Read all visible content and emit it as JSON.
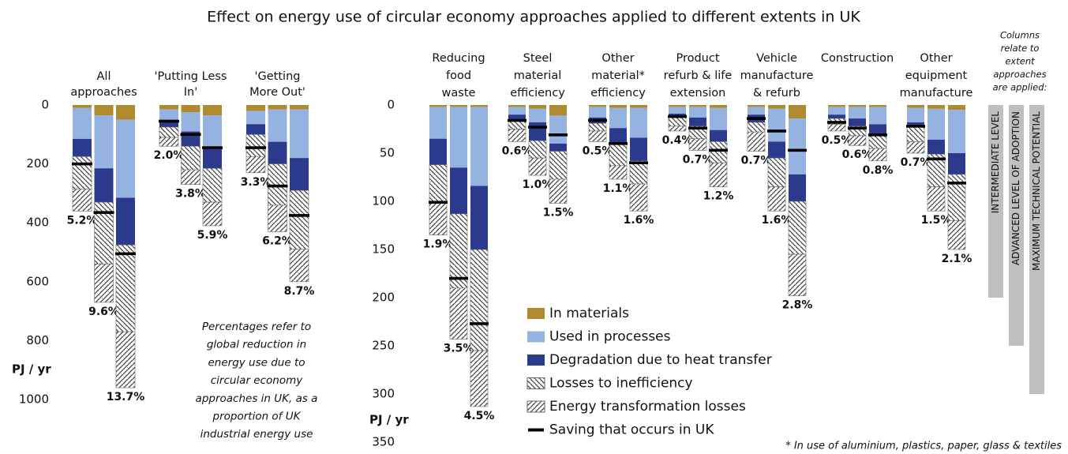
{
  "title": "Effect on energy use of circular economy approaches applied to different extents in UK",
  "chart_data": [
    {
      "type": "stacked_bar",
      "inverted": true,
      "groups": [
        [
          "All",
          "approaches"
        ],
        [
          "'Putting Less",
          "In'"
        ],
        [
          "'Getting",
          "More Out'"
        ]
      ],
      "ylabel": "PJ / yr",
      "ylim": [
        0,
        1000
      ],
      "yticks": [
        0,
        200,
        400,
        600,
        800,
        1000
      ],
      "series": [
        {
          "color": "#b08a2e",
          "values": [
            10,
            35,
            50,
            15,
            25,
            35,
            20,
            15,
            15
          ]
        },
        {
          "color": "#95b3e0",
          "values": [
            105,
            180,
            265,
            35,
            65,
            115,
            45,
            110,
            165
          ]
        },
        {
          "color": "#2b3a8c",
          "values": [
            60,
            115,
            160,
            25,
            50,
            65,
            35,
            75,
            110
          ]
        },
        {
          "color": "#444444",
          "pattern": "backslash",
          "values": [
            110,
            210,
            295,
            35,
            80,
            115,
            75,
            140,
            200
          ]
        },
        {
          "color": "#444444",
          "pattern": "slash",
          "values": [
            75,
            130,
            190,
            30,
            50,
            80,
            55,
            90,
            110
          ]
        }
      ],
      "savings": {
        "color": "#000000",
        "values": [
          200,
          365,
          505,
          55,
          100,
          145,
          145,
          275,
          375
        ]
      },
      "reductions": {
        "values": [
          5.2,
          9.6,
          13.7,
          2.0,
          3.8,
          5.9,
          3.3,
          6.2,
          8.7
        ],
        "value_labels": [
          "5.2%",
          "9.6%",
          "13.7%",
          "2.0%",
          "3.8%",
          "5.9%",
          "3.3%",
          "6.2%",
          "8.7%"
        ]
      },
      "note": [
        "Percentages refer to",
        "global reduction in",
        "energy use due to",
        "circular economy",
        "approaches in UK, as a",
        "proportion of UK",
        "industrial energy use"
      ]
    },
    {
      "type": "stacked_bar",
      "inverted": true,
      "groups": [
        [
          "Reducing",
          "food",
          "waste"
        ],
        [
          "Steel",
          "material",
          "efficiency"
        ],
        [
          "Other",
          "material*",
          "efficiency"
        ],
        [
          "Product",
          "refurb & life",
          "extension"
        ],
        [
          "Vehicle",
          "manufacture",
          "& refurb"
        ],
        [
          "Construction"
        ],
        [
          "Other",
          "equipment",
          "manufacture"
        ]
      ],
      "ylabel": "PJ / yr",
      "ylim": [
        0,
        350
      ],
      "yticks": [
        0,
        50,
        100,
        150,
        200,
        250,
        300,
        350
      ],
      "series": [
        {
          "name": "In materials",
          "color": "#b08a2e",
          "values": [
            2,
            2,
            2,
            2,
            4,
            11,
            2,
            3,
            3,
            2,
            2,
            3,
            2,
            4,
            14,
            2,
            2,
            2,
            3,
            4,
            5
          ]
        },
        {
          "name": "Used in processes",
          "color": "#95b3e0",
          "values": [
            33,
            63,
            82,
            8,
            14,
            29,
            11,
            21,
            31,
            7,
            11,
            23,
            8,
            34,
            58,
            8,
            12,
            18,
            15,
            32,
            45
          ]
        },
        {
          "name": "Degradation due to heat transfer",
          "color": "#2b3a8c",
          "values": [
            27,
            48,
            66,
            5,
            19,
            8,
            6,
            16,
            24,
            4,
            9,
            12,
            8,
            17,
            28,
            4,
            8,
            10,
            5,
            15,
            22
          ]
        },
        {
          "name": "Losses to inefficiency",
          "color": "#444444",
          "pattern": "backslash",
          "values": [
            38,
            77,
            105,
            10,
            18,
            29,
            8,
            23,
            24,
            9,
            13,
            22,
            10,
            30,
            55,
            6,
            10,
            15,
            15,
            34,
            48
          ]
        },
        {
          "name": "Energy transformation losses",
          "color": "#444444",
          "pattern": "slash",
          "values": [
            35,
            53,
            58,
            13,
            18,
            25,
            11,
            14,
            28,
            5,
            12,
            25,
            20,
            25,
            43,
            7,
            10,
            13,
            12,
            25,
            30
          ]
        }
      ],
      "savings": {
        "name": "Saving that occurs in UK",
        "color": "#000000",
        "values": [
          101,
          180,
          227,
          16,
          23,
          31,
          16,
          40,
          60,
          12,
          24,
          47,
          14,
          27,
          47,
          18,
          24,
          31,
          22,
          56,
          81
        ]
      },
      "reductions": {
        "values": [
          1.9,
          3.5,
          4.5,
          0.6,
          1.0,
          1.5,
          0.5,
          1.1,
          1.6,
          0.4,
          0.7,
          1.2,
          0.7,
          1.6,
          2.8,
          0.5,
          0.6,
          0.8,
          0.7,
          1.5,
          2.1
        ],
        "value_labels": [
          "1.9%",
          "3.5%",
          "4.5%",
          "0.6%",
          "1.0%",
          "1.5%",
          "0.5%",
          "1.1%",
          "1.6%",
          "0.4%",
          "0.7%",
          "1.2%",
          "0.7%",
          "1.6%",
          "2.8%",
          "0.5%",
          "0.6%",
          "0.8%",
          "0.7%",
          "1.5%",
          "2.1%"
        ]
      },
      "extent_bars": {
        "title": [
          "Columns",
          "relate to",
          "extent",
          "approaches",
          "are applied:"
        ],
        "color": "#bfbfbf",
        "names": [
          "INTERMEDIATE LEVEL",
          "ADVANCED LEVEL OF ADOPTION",
          "MAXIMUM TECHNICAL POTENTIAL"
        ],
        "values": [
          200,
          250,
          300
        ]
      },
      "footnote": "* In use of aluminium, plastics, paper, glass & textiles"
    }
  ]
}
